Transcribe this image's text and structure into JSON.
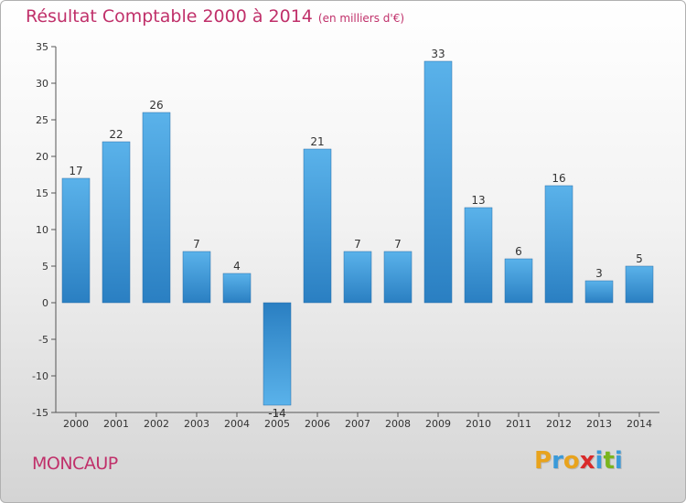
{
  "title": "Résultat Comptable 2000 à 2014",
  "subtitle": "(en milliers d'€)",
  "place": "MONCAUP",
  "logo": {
    "letters": [
      "P",
      "r",
      "o",
      "x",
      "i",
      "t",
      "i"
    ],
    "colors": [
      "#e8a31d",
      "#3a9ad9",
      "#e8a31d",
      "#d92a2a",
      "#3a9ad9",
      "#7ab51d",
      "#3a9ad9"
    ]
  },
  "colors": {
    "accent": "#c0306a",
    "bar": "#4aa3df",
    "bar_dark": "#2a80c4"
  },
  "chart_data": {
    "type": "bar",
    "title": "Résultat Comptable 2000 à 2014",
    "xlabel": "",
    "ylabel": "",
    "categories": [
      "2000",
      "2001",
      "2002",
      "2003",
      "2004",
      "2005",
      "2006",
      "2007",
      "2008",
      "2009",
      "2010",
      "2011",
      "2012",
      "2013",
      "2014"
    ],
    "values": [
      17,
      22,
      26,
      7,
      4,
      -14,
      21,
      7,
      7,
      33,
      13,
      6,
      16,
      3,
      5
    ],
    "ylim": [
      -15,
      35
    ],
    "yticks": [
      -15,
      -10,
      -5,
      0,
      5,
      10,
      15,
      20,
      25,
      30,
      35
    ],
    "grid": false,
    "legend": "none"
  }
}
